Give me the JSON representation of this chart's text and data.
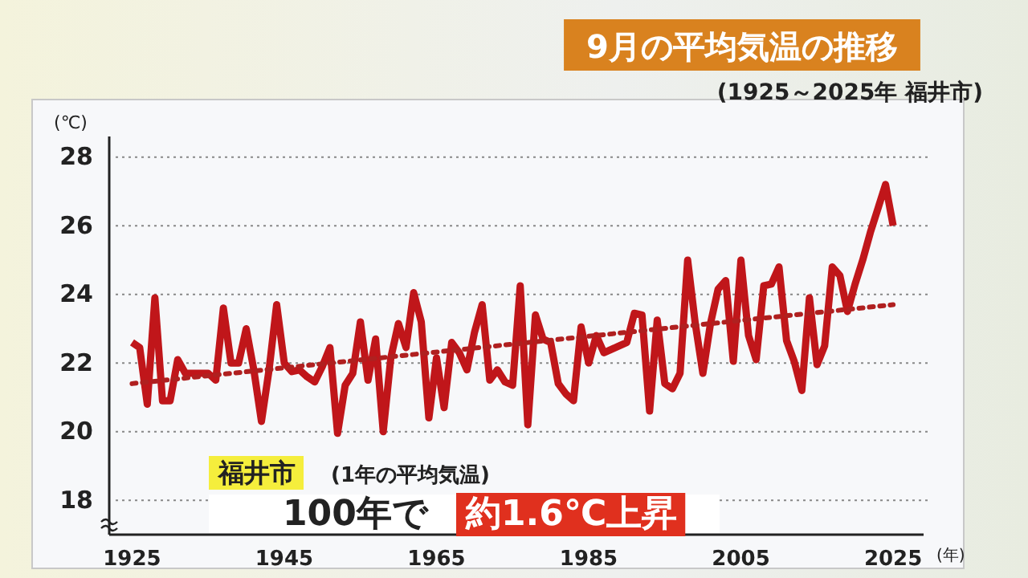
{
  "chart_data": {
    "type": "line",
    "title": "9月の平均気温の推移",
    "subtitle": "(1925～2025年 福井市)",
    "xlabel": "(年)",
    "ylabel": "(℃)",
    "xlim": [
      1922,
      2029
    ],
    "xticks": [
      1925,
      1945,
      1965,
      1985,
      2005,
      2025
    ],
    "ylim": [
      17,
      28.6
    ],
    "yticks": [
      18,
      20,
      22,
      24,
      26,
      28
    ],
    "grid": "y",
    "annotations": [
      "福井市",
      "(1年の平均気温)",
      "100年で",
      "約1.6℃上昇"
    ],
    "series": [
      {
        "color": "#c0161a",
        "line_style": "solid",
        "x": [
          1925,
          1926,
          1927,
          1928,
          1929,
          1930,
          1931,
          1932,
          1933,
          1934,
          1935,
          1936,
          1937,
          1938,
          1939,
          1940,
          1941,
          1942,
          1943,
          1944,
          1945,
          1946,
          1947,
          1948,
          1949,
          1950,
          1951,
          1952,
          1953,
          1954,
          1955,
          1956,
          1957,
          1958,
          1959,
          1960,
          1961,
          1962,
          1963,
          1964,
          1965,
          1966,
          1967,
          1968,
          1969,
          1970,
          1971,
          1972,
          1973,
          1974,
          1975,
          1976,
          1977,
          1978,
          1979,
          1980,
          1981,
          1982,
          1983,
          1984,
          1985,
          1986,
          1987,
          1988,
          1989,
          1990,
          1991,
          1992,
          1993,
          1994,
          1995,
          1996,
          1997,
          1998,
          1999,
          2000,
          2001,
          2002,
          2003,
          2004,
          2005,
          2006,
          2007,
          2008,
          2009,
          2010,
          2011,
          2012,
          2013,
          2014,
          2015,
          2016,
          2017,
          2018,
          2019,
          2020,
          2021,
          2022,
          2023,
          2024,
          2025
        ],
        "values": [
          22.6,
          22.45,
          20.8,
          23.9,
          20.9,
          20.9,
          22.1,
          21.7,
          21.7,
          21.7,
          21.7,
          21.5,
          23.6,
          22.0,
          22.0,
          23.0,
          21.8,
          20.3,
          21.8,
          23.7,
          22.0,
          21.75,
          21.8,
          21.6,
          21.45,
          21.9,
          22.45,
          19.95,
          21.35,
          21.7,
          23.2,
          21.5,
          22.7,
          20.0,
          22.15,
          23.15,
          22.45,
          24.05,
          23.2,
          20.4,
          22.15,
          20.7,
          22.6,
          22.3,
          21.8,
          22.9,
          23.7,
          21.5,
          21.8,
          21.45,
          21.35,
          24.25,
          20.2,
          23.4,
          22.7,
          22.6,
          21.4,
          21.1,
          20.9,
          23.05,
          22.0,
          22.8,
          22.3,
          22.4,
          22.5,
          22.6,
          23.45,
          23.4,
          20.6,
          23.25,
          21.4,
          21.25,
          21.7,
          25.0,
          23.15,
          21.7,
          23.15,
          24.15,
          24.4,
          22.05,
          25.0,
          22.8,
          22.1,
          24.25,
          24.3,
          24.8,
          22.65,
          22.05,
          21.2,
          23.9,
          21.95,
          22.5,
          24.8,
          24.55,
          23.5,
          24.3,
          25.0,
          25.8,
          26.5,
          27.2,
          26.0
        ]
      },
      {
        "color": "#b02020",
        "line_style": "dotted",
        "x": [
          1925,
          2025
        ],
        "values": [
          21.4,
          23.7
        ]
      }
    ]
  }
}
